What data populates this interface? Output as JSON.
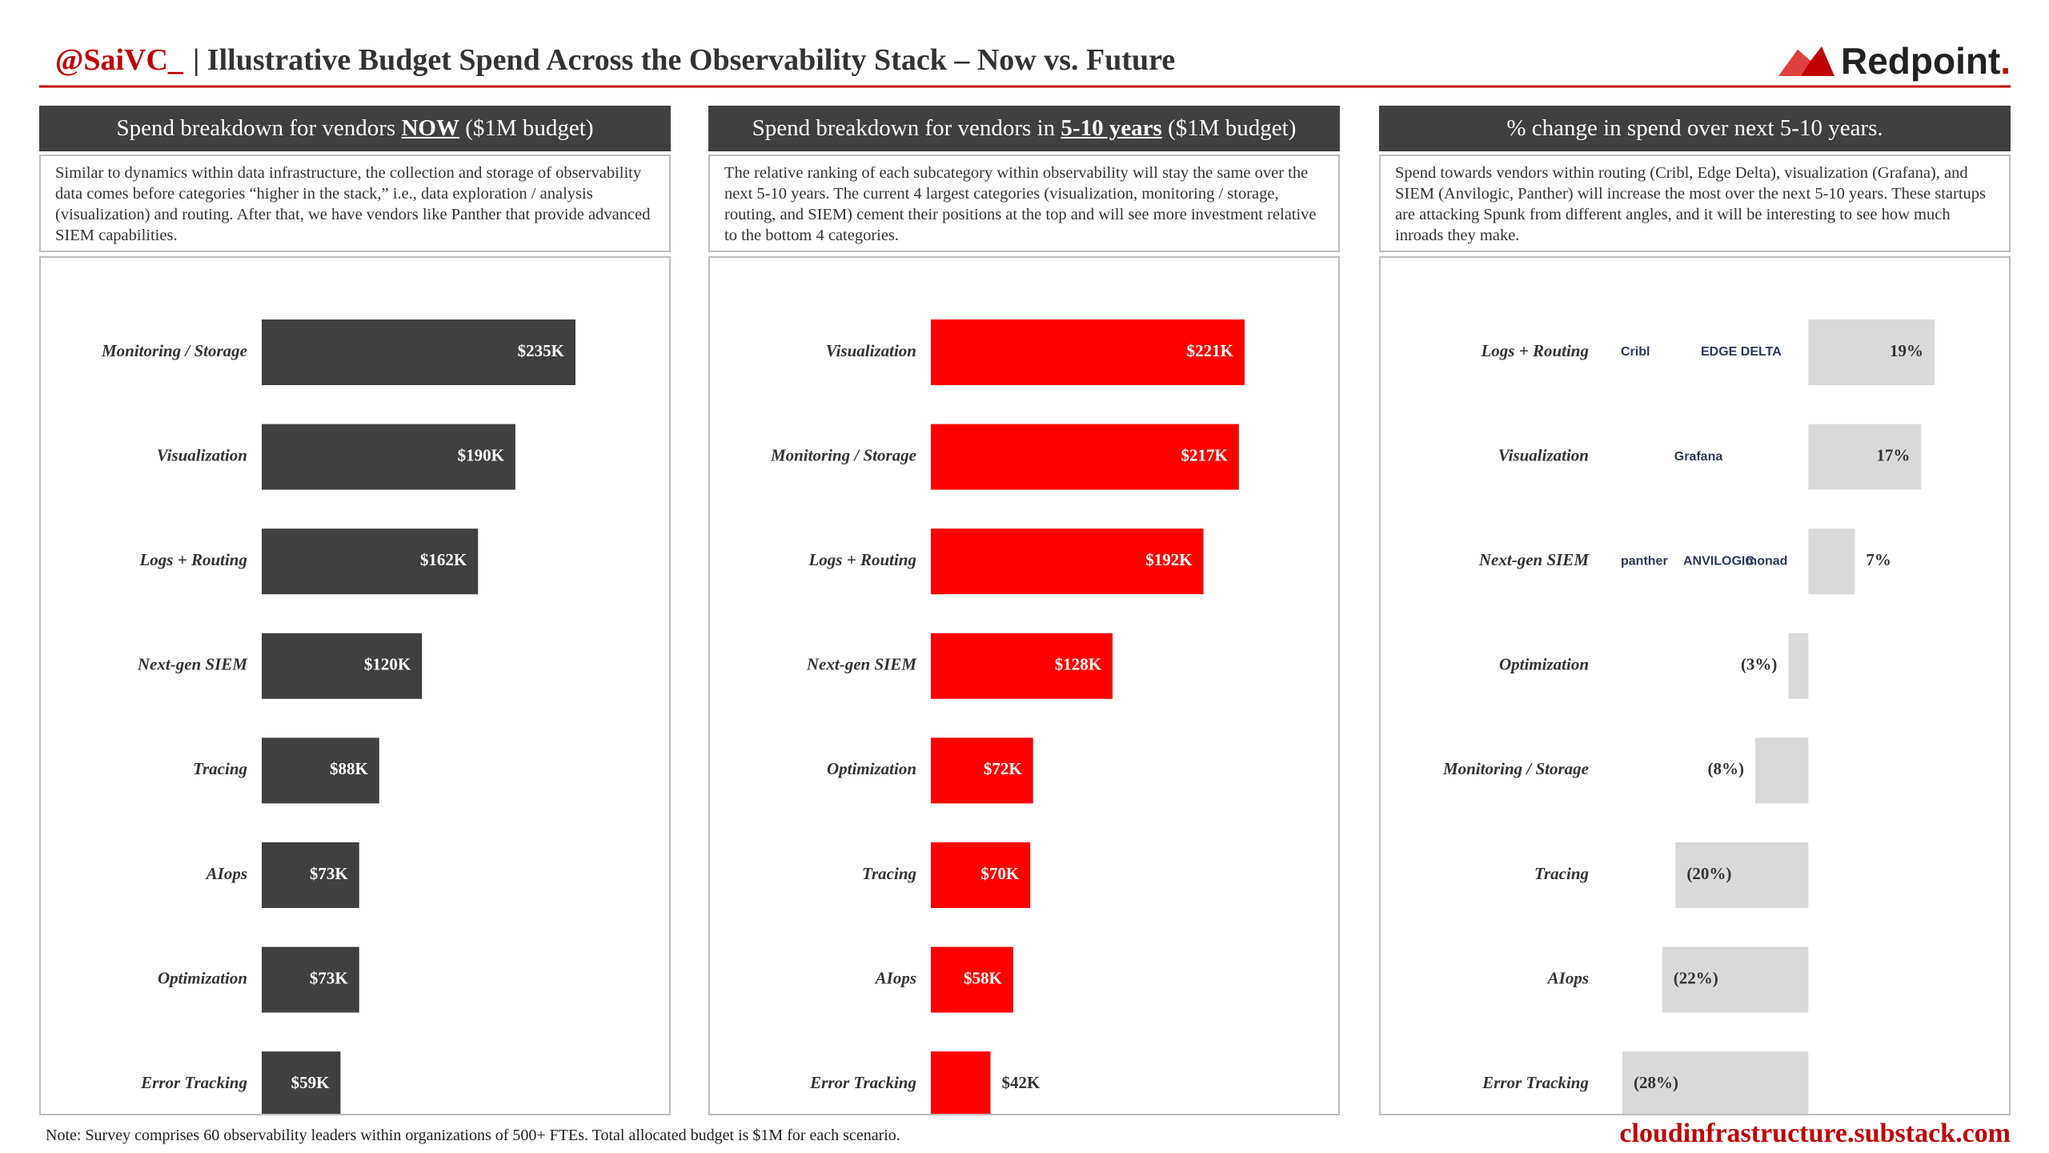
{
  "header": {
    "handle": "@SaiVC_",
    "title": "| Illustrative Budget Spend Across the Observability Stack – Now vs. Future",
    "logo": [
      "Redpoint",
      "."
    ]
  },
  "note": "Note: Survey comprises 60 observability leaders within organizations of 500+ FTEs. Total allocated budget is $1M for each scenario.",
  "source": "cloudinfrastructure.substack.com",
  "chart_data": [
    {
      "type": "bar",
      "orientation": "horizontal",
      "title": [
        "Spend breakdown for vendors ",
        "NOW",
        " ($1M budget)"
      ],
      "description": "Similar to dynamics within data infrastructure, the collection and storage of observability data comes before categories “higher in the stack,” i.e., data exploration / analysis (visualization) and routing. After that, we have vendors like Panther that provide advanced SIEM capabilities.",
      "categories": [
        "Monitoring / Storage",
        "Visualization",
        "Logs + Routing",
        "Next-gen SIEM",
        "Tracing",
        "AIops",
        "Optimization",
        "Error Tracking"
      ],
      "values": [
        235,
        190,
        162,
        120,
        88,
        73,
        73,
        59
      ],
      "value_labels": [
        "$235K",
        "$190K",
        "$162K",
        "$120K",
        "$88K",
        "$73K",
        "$73K",
        "$59K"
      ],
      "color": "#404040"
    },
    {
      "type": "bar",
      "orientation": "horizontal",
      "title": [
        "Spend breakdown for vendors in ",
        "5-10 years",
        " ($1M budget)"
      ],
      "description": "The relative ranking of each subcategory within observability will stay the same over the next 5-10 years. The current 4 largest categories (visualization, monitoring / storage, routing, and SIEM) cement their positions at the top and will see more investment relative to the bottom 4 categories.",
      "categories": [
        "Visualization",
        "Monitoring / Storage",
        "Logs + Routing",
        "Next-gen SIEM",
        "Optimization",
        "Tracing",
        "AIops",
        "Error Tracking"
      ],
      "values": [
        221,
        217,
        192,
        128,
        72,
        70,
        58,
        42
      ],
      "value_labels": [
        "$221K",
        "$217K",
        "$192K",
        "$128K",
        "$72K",
        "$70K",
        "$58K",
        "$42K"
      ],
      "color": "#ff0000"
    },
    {
      "type": "bar",
      "orientation": "horizontal",
      "title": [
        "% change in spend over next 5-10 years."
      ],
      "description": "Spend towards vendors within routing (Cribl, Edge Delta), visualization (Grafana), and SIEM (Anvilogic, Panther) will increase the most over the next 5-10 years. These startups are attacking Spunk from different angles, and it will be interesting to see how much inroads they make.",
      "categories": [
        "Logs + Routing",
        "Visualization",
        "Next-gen SIEM",
        "Optimization",
        "Monitoring / Storage",
        "Tracing",
        "AIops",
        "Error Tracking"
      ],
      "values": [
        19,
        17,
        7,
        -3,
        -8,
        -20,
        -22,
        -28
      ],
      "value_labels": [
        "19%",
        "17%",
        "7%",
        "(3%)",
        "(8%)",
        "(20%)",
        "(22%)",
        "(28%)"
      ],
      "vendors": [
        [
          "Cribl",
          "EDGE DELTA"
        ],
        [
          "Grafana"
        ],
        [
          "panther",
          "ANVILOGIC",
          "monad"
        ],
        [],
        [],
        [],
        [],
        []
      ],
      "color": "#d9d9d9"
    }
  ]
}
